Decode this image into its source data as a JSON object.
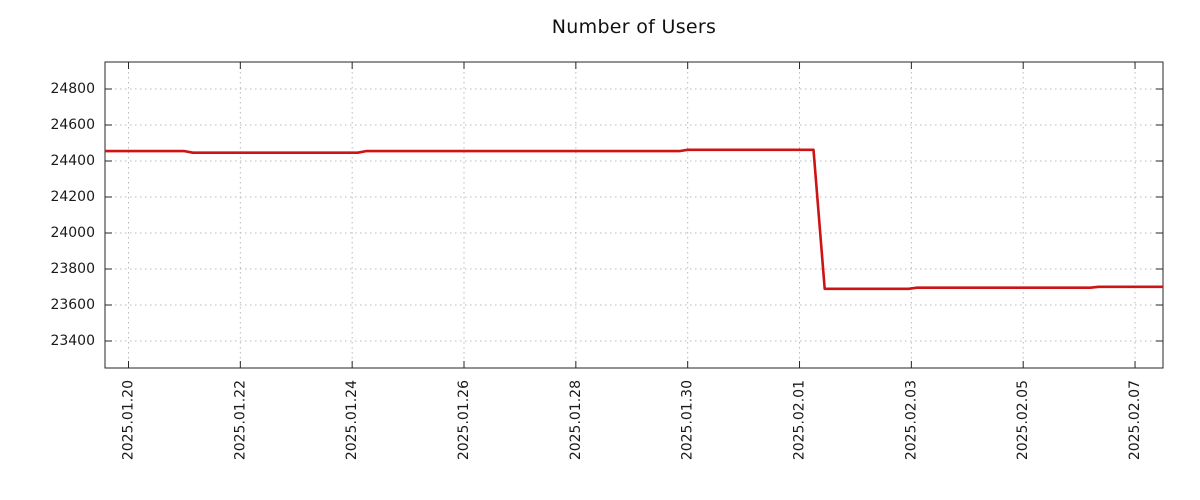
{
  "chart": {
    "title": "Number of Users"
  },
  "chart_data": {
    "type": "line",
    "title": "Number of Users",
    "xlabel": "",
    "ylabel": "",
    "grid": true,
    "legend": "none",
    "x_unit": "days since 2025.01.20",
    "xlim": [
      -0.42,
      18.5
    ],
    "ylim": [
      23250,
      24950
    ],
    "y_ticks": [
      23400,
      23600,
      23800,
      24000,
      24200,
      24400,
      24600,
      24800
    ],
    "x_ticks": [
      {
        "x": 0,
        "label": "2025.01.20"
      },
      {
        "x": 2,
        "label": "2025.01.22"
      },
      {
        "x": 4,
        "label": "2025.01.24"
      },
      {
        "x": 6,
        "label": "2025.01.26"
      },
      {
        "x": 8,
        "label": "2025.01.28"
      },
      {
        "x": 10,
        "label": "2025.01.30"
      },
      {
        "x": 12,
        "label": "2025.02.01"
      },
      {
        "x": 14,
        "label": "2025.02.03"
      },
      {
        "x": 16,
        "label": "2025.02.05"
      },
      {
        "x": 18,
        "label": "2025.02.07"
      }
    ],
    "series": [
      {
        "name": "Number of Users",
        "color": "#cc1414",
        "points": [
          [
            -0.42,
            24455
          ],
          [
            1.0,
            24455
          ],
          [
            1.15,
            24446
          ],
          [
            4.1,
            24446
          ],
          [
            4.25,
            24455
          ],
          [
            9.85,
            24455
          ],
          [
            10.0,
            24462
          ],
          [
            12.25,
            24462
          ],
          [
            12.45,
            23690
          ],
          [
            13.95,
            23690
          ],
          [
            14.1,
            23696
          ],
          [
            17.2,
            23696
          ],
          [
            17.35,
            23701
          ],
          [
            18.5,
            23701
          ]
        ]
      }
    ]
  },
  "style": {
    "line_color": "#cc1414",
    "grid_color": "#b9b9b9",
    "axis_color": "#262626",
    "background": "#ffffff",
    "title_color": "#111111"
  }
}
